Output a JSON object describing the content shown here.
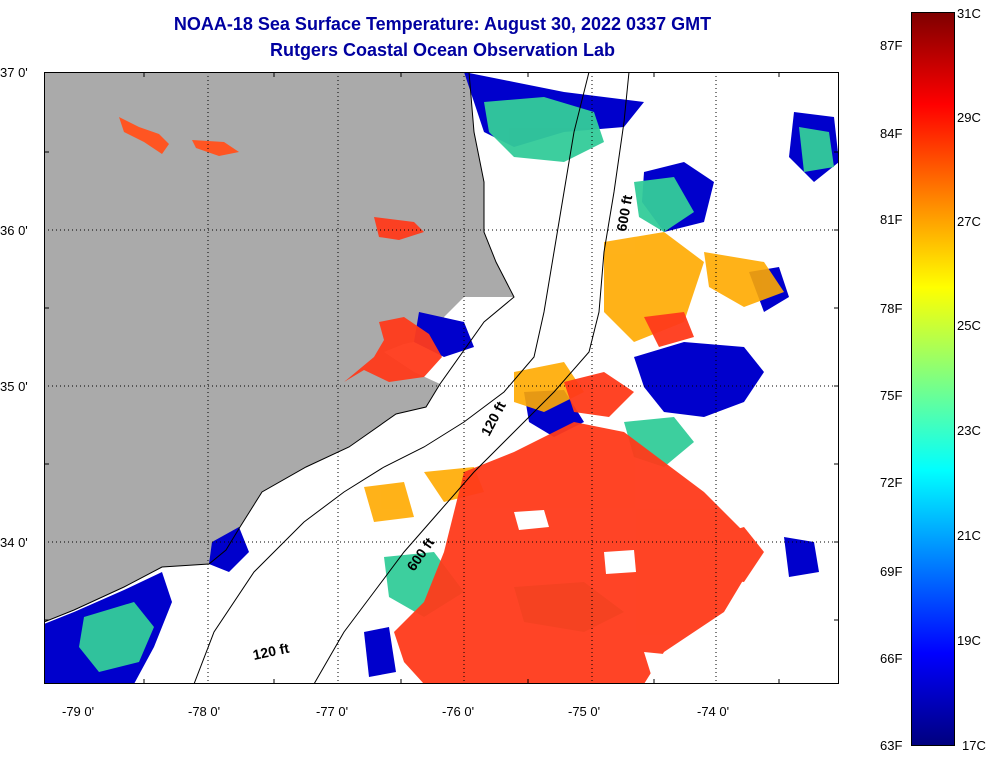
{
  "title": {
    "line1": "NOAA-18 Sea Surface Temperature:  August 30, 2022 0337 GMT",
    "line2": "Rutgers Coastal Ocean Observation Lab"
  },
  "axes": {
    "lat_labels": [
      "37 0'",
      "36 0'",
      "35 0'",
      "34 0'"
    ],
    "lon_labels": [
      "-79 0'",
      "-78 0'",
      "-77 0'",
      "-76 0'",
      "-75 0'",
      "-74 0'"
    ]
  },
  "contours": {
    "north_600": "600 ft",
    "mid_120": "120 ft",
    "south_600": "600 ft",
    "south_120": "120 ft"
  },
  "colorbar": {
    "f_labels": [
      "87F",
      "84F",
      "81F",
      "78F",
      "75F",
      "72F",
      "69F",
      "66F",
      "63F"
    ],
    "c_labels": [
      "31C",
      "29C",
      "27C",
      "25C",
      "23C",
      "21C",
      "19C",
      "17C"
    ],
    "gradient_colors": [
      "#7f0000",
      "#ff0000",
      "#ff8000",
      "#ffff00",
      "#80ff80",
      "#00ffff",
      "#0080ff",
      "#0000ff",
      "#00007f"
    ]
  },
  "colors": {
    "land": "#aaaaaa",
    "cloud": "#ffffff",
    "title": "#0000a0"
  }
}
